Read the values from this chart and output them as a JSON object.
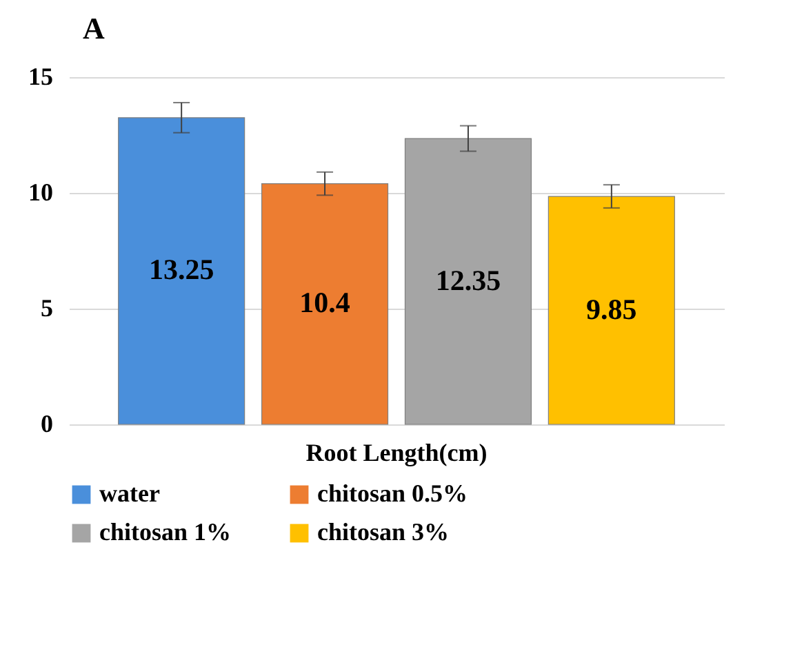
{
  "chart_data": {
    "type": "bar",
    "title": "A",
    "xlabel": "Root Length(cm)",
    "categories": [
      "Root Length(cm)"
    ],
    "series": [
      {
        "name": "water",
        "color": "#4a8fdb",
        "values": [
          13.25
        ],
        "errors": [
          0.65
        ]
      },
      {
        "name": "chitosan 0.5%",
        "color": "#ed7d31",
        "values": [
          10.4
        ],
        "errors": [
          0.5
        ]
      },
      {
        "name": "chitosan 1%",
        "color": "#a5a5a5",
        "values": [
          12.35
        ],
        "errors": [
          0.55
        ]
      },
      {
        "name": "chitosan 3%",
        "color": "#ffc000",
        "values": [
          9.85
        ],
        "errors": [
          0.5
        ]
      }
    ],
    "ylim": [
      0,
      15
    ],
    "yticks": [
      0,
      5,
      10,
      15
    ],
    "grid": "y",
    "legend": "bottom",
    "data_labels": true
  }
}
